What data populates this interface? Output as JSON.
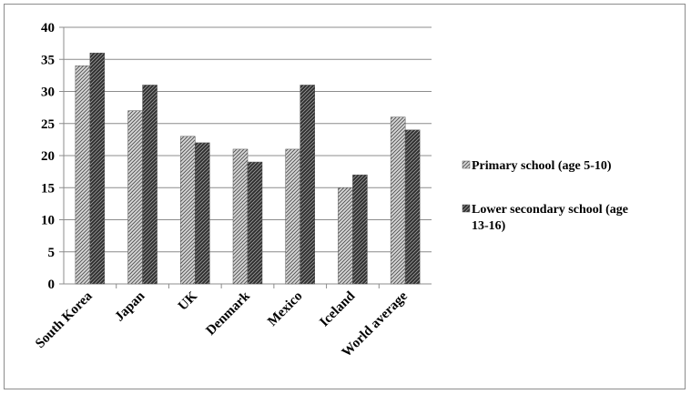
{
  "chart_data": {
    "type": "bar",
    "title": "",
    "xlabel": "",
    "ylabel": "",
    "categories": [
      "South Korea",
      "Japan",
      "UK",
      "Denmark",
      "Mexico",
      "Iceland",
      "World average"
    ],
    "series": [
      {
        "name": "Primary school (age 5-10)",
        "values": [
          34,
          27,
          23,
          21,
          21,
          15,
          26
        ],
        "pattern": "light-hatch",
        "color": "#8a8a8a"
      },
      {
        "name": "Lower secondary school (age 13-16)",
        "values": [
          36,
          31,
          22,
          19,
          31,
          17,
          24
        ],
        "pattern": "dark-hatch",
        "color": "#3a3a3a"
      }
    ],
    "ylim": [
      0,
      40
    ],
    "yticks": [
      0,
      5,
      10,
      15,
      20,
      25,
      30,
      35,
      40
    ],
    "grid": true,
    "legend_position": "right"
  },
  "legend": {
    "items": [
      {
        "lines": [
          "Primary school (age 5-10)"
        ]
      },
      {
        "lines": [
          "Lower secondary school (age",
          "13-16)"
        ]
      }
    ]
  }
}
